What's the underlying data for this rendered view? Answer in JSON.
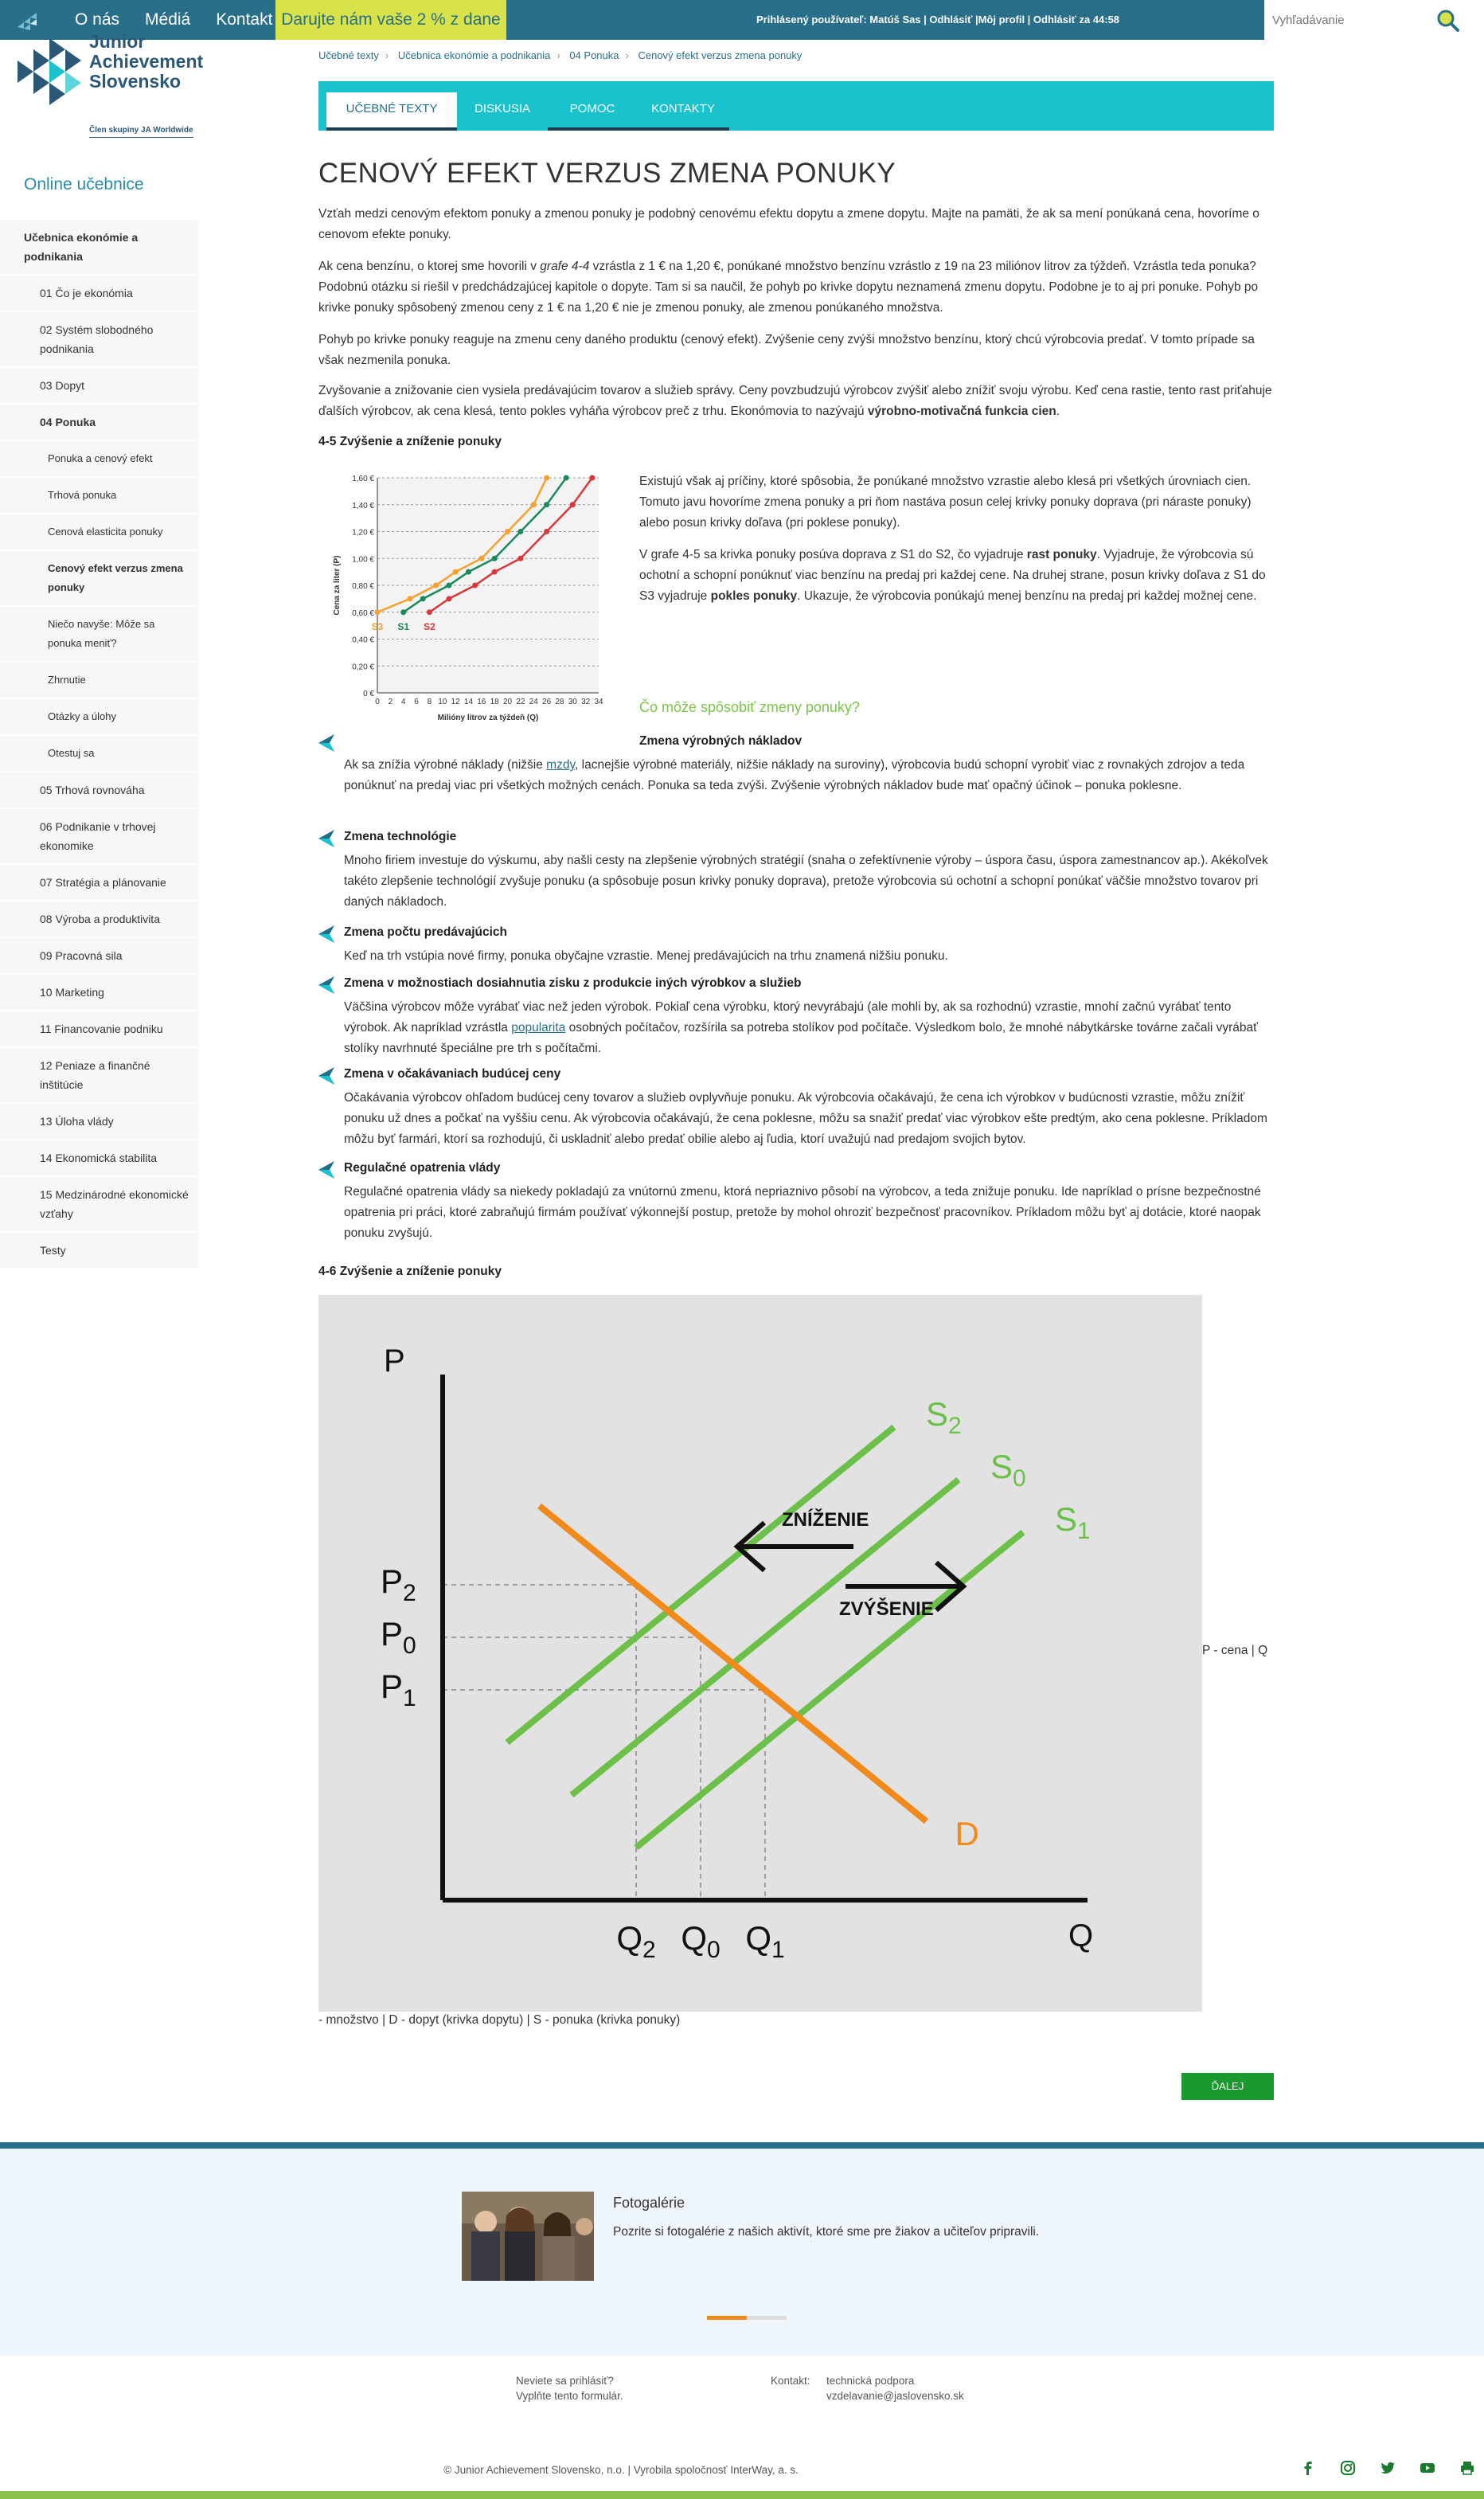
{
  "topbar": {
    "nav": [
      "O nás",
      "Médiá",
      "Kontakt"
    ],
    "donate": "Darujte nám vaše 2 % z dane",
    "user": "Prihlásený používateľ: Matúš Sas | Odhlásiť |Môj profil | Odhlásiť za 44:58",
    "search_placeholder": "Vyhľadávanie",
    "colors": {
      "bar": "#2a6f8a",
      "donate": "#d8e34a"
    }
  },
  "brand": {
    "line1": "Junior",
    "line2": "Achievement",
    "line3": "Slovensko",
    "sub": "Člen skupiny JA Worldwide"
  },
  "sidebar": {
    "title": "Online učebnice",
    "items": [
      {
        "label": "Učebnica ekonómie a podnikania",
        "level": 0
      },
      {
        "label": "01 Čo je ekonómia",
        "level": 1
      },
      {
        "label": "02 Systém slobodného podnikania",
        "level": 1
      },
      {
        "label": "03 Dopyt",
        "level": 1
      },
      {
        "label": "04 Ponuka",
        "level": 1,
        "active": true
      },
      {
        "label": "Ponuka a cenový efekt",
        "level": 2
      },
      {
        "label": "Trhová ponuka",
        "level": 2
      },
      {
        "label": "Cenová elasticita ponuky",
        "level": 2
      },
      {
        "label": "Cenový efekt verzus zmena ponuky",
        "level": 2,
        "active": true
      },
      {
        "label": "Niečo navyše: Môže sa ponuka meniť?",
        "level": 2
      },
      {
        "label": "Zhrnutie",
        "level": 2
      },
      {
        "label": "Otázky a úlohy",
        "level": 2
      },
      {
        "label": "Otestuj sa",
        "level": 2
      },
      {
        "label": "05 Trhová rovnováha",
        "level": 1
      },
      {
        "label": "06 Podnikanie v trhovej ekonomike",
        "level": 1
      },
      {
        "label": "07 Stratégia a plánovanie",
        "level": 1
      },
      {
        "label": "08 Výroba a produktivita",
        "level": 1
      },
      {
        "label": "09 Pracovná sila",
        "level": 1
      },
      {
        "label": "10 Marketing",
        "level": 1
      },
      {
        "label": "11 Financovanie podniku",
        "level": 1
      },
      {
        "label": "12 Peniaze a finančné inštitúcie",
        "level": 1
      },
      {
        "label": "13 Úloha vlády",
        "level": 1
      },
      {
        "label": "14 Ekonomická stabilita",
        "level": 1
      },
      {
        "label": "15 Medzinárodné ekonomické vzťahy",
        "level": 1
      },
      {
        "label": "Testy",
        "level": 1
      }
    ]
  },
  "breadcrumb": [
    "Učebné texty",
    "Učebnica ekonómie a podnikania",
    "04 Ponuka",
    "Cenový efekt verzus zmena ponuky"
  ],
  "tabs": [
    "UČEBNÉ TEXTY",
    "DISKUSIA",
    "POMOC",
    "KONTAKTY"
  ],
  "content": {
    "title": "CENOVÝ EFEKT VERZUS ZMENA PONUKY",
    "p1": "Vzťah medzi cenovým efektom ponuky a zmenou ponuky je podobný cenovému efektu dopytu a zmene dopytu. Majte na pamäti, že ak sa mení ponúkaná cena, hovoríme o cenovom efekte ponuky.",
    "p2a": "Ak cena benzínu, o ktorej sme hovorili v ",
    "p2em": "grafe 4-4",
    "p2b": " vzrástla z 1 € na 1,20 €, ponúkané množstvo benzínu vzrástlo z 19 na 23 miliónov litrov za týždeň. Vzrástla teda ponuka? Podobnú otázku si riešil v predchádzajúcej kapitole o dopyte. Tam si sa naučil, že pohyb po krivke dopytu neznamená zmenu dopytu. Podobne je to aj pri ponuke. Pohyb po krivke ponuky spôsobený zmenou ceny z 1 € na 1,20 € nie je zmenou ponuky, ale zmenou ponúkaného množstva.",
    "p3": "Pohyb po krivke ponuky reaguje na zmenu ceny daného produktu (cenový efekt). Zvýšenie ceny zvýši množstvo benzínu, ktorý chcú výrobcovia predať. V tomto prípade sa však nezmenila ponuka.",
    "p4a": "Zvyšovanie a znižovanie cien vysiela predávajúcim tovarov a služieb správy. Ceny povzbudzujú výrobcov zvýšiť alebo znížiť svoju výrobu. Keď cena rastie, tento rast priťahuje ďalších výrobcov, ak cena klesá, tento pokles vyháňa výrobcov preč z trhu. Ekonómovia to nazývajú ",
    "p4b": "výrobno-motivačná funkcia cien",
    "p4c": ".",
    "fig1_title": "4-5 Zvýšenie a zníženie ponuky",
    "s1": "Existujú však aj príčiny, ktoré spôsobia, že ponúkané množstvo vzrastie alebo klesá pri všetkých úrovniach cien. Tomuto javu hovoríme zmena ponuky a pri ňom nastáva posun celej krivky ponuky doprava (pri náraste ponuky) alebo posun krivky doľava (pri poklese ponuky).",
    "s2a": "V grafe 4-5 sa krivka ponuky posúva doprava z S1 do S2, čo vyjadruje ",
    "s2b": "rast ponuky",
    "s2c": ". Vyjadruje, že výrobcovia sú ochotní a schopní ponúknuť viac benzínu na predaj pri každej cene. Na druhej strane, posun krivky doľava z S1 do S3 vyjadruje ",
    "s2d": "pokles ponuky",
    "s2e": ". Ukazuje, že výrobcovia ponúkajú menej benzínu na predaj pri každej možnej cene.",
    "question": "Čo môže spôsobiť zmeny ponuky?",
    "reasons": [
      {
        "title": "Zmena výrobných nákladov",
        "a": "Ak sa znížia výrobné náklady (nižšie ",
        "link": "mzdy",
        "b": ", lacnejšie výrobné materiály, nižšie náklady na suroviny), výrobcovia budú schopní vyrobiť viac z rovnakých zdrojov a teda ponúknuť na predaj viac pri všetkých možných cenách. Ponuka sa teda zvýši. Zvýšenie výrobných nákladov bude mať opačný účinok – ponuka poklesne."
      },
      {
        "title": "Zmena technológie",
        "a": "Mnoho firiem investuje do výskumu, aby našli cesty na zlepšenie výrobných stratégií (snaha o zefektívnenie výroby – úspora času, úspora zamestnancov ap.). Akékoľvek takéto zlepšenie technológií zvyšuje ponuku (a spôsobuje posun krivky ponuky doprava), pretože výrobcovia sú ochotní a schopní ponúkať väčšie množstvo tovarov pri daných nákladoch.",
        "link": "",
        "b": ""
      },
      {
        "title": "Zmena počtu predávajúcich",
        "a": "Keď na trh vstúpia nové firmy, ponuka obyčajne vzrastie. Menej predávajúcich na trhu znamená nižšiu ponuku.",
        "link": "",
        "b": ""
      },
      {
        "title": "Zmena v možnostiach dosiahnutia zisku z produkcie iných výrobkov a služieb",
        "a": "Väčšina výrobcov môže vyrábať viac než jeden výrobok. Pokiaľ cena výrobku, ktorý nevyrábajú (ale mohli by, ak sa rozhodnú) vzrastie, mnohí začnú vyrábať tento výrobok. Ak napríklad vzrástla ",
        "link": "popularita",
        "b": " osobných počítačov, rozšírila sa potreba stolíkov pod počítače. Výsledkom bolo, že mnohé nábytkárske továrne začali vyrábať stolíky navrhnuté špeciálne pre trh s počítačmi."
      },
      {
        "title": "Zmena v očakávaniach budúcej ceny",
        "a": "Očakávania výrobcov ohľadom budúcej ceny tovarov a služieb ovplyvňuje ponuku. Ak výrobcovia očakávajú, že cena ich výrobkov v budúcnosti vzrastie, môžu znížiť ponuku už dnes a počkať na vyššiu cenu. Ak výrobcovia očakávajú, že cena poklesne, môžu sa snažiť predať viac výrobkov ešte predtým, ako cena poklesne. Príkladom môžu byť farmári, ktorí sa rozhodujú, či uskladniť alebo predať obilie alebo aj ľudia, ktorí uvažujú nad predajom svojich bytov.",
        "link": "",
        "b": ""
      },
      {
        "title": "Regulačné opatrenia vlády",
        "a": "Regulačné opatrenia vlády sa niekedy pokladajú za vnútornú zmenu, ktorá nepriaznivo pôsobí na výrobcov, a teda znižuje ponuku. Ide napríklad o prísne bezpečnostné opatrenia pri práci, ktoré zabraňujú firmám používať výkonnejší postup, pretože by mohol ohroziť bezpečnosť pracovníkov. Príkladom môžu byť aj dotácie, ktoré naopak ponuku zvyšujú.",
        "link": "",
        "b": ""
      }
    ],
    "fig2_title": "4-6 Zvýšenie a zníženie ponuky",
    "fig2_alt_a": "P - cena | Q",
    "fig2_alt_b": "- množstvo | D - dopyt (krivka dopytu) | S - ponuka (krivka ponuky)",
    "next": "ĎALEJ"
  },
  "chart_data": [
    {
      "type": "line",
      "xlabel": "Milióny litrov za týždeň (Q)",
      "ylabel": "Cena za liter (P)",
      "x_ticks": [
        "0",
        "2",
        "4",
        "6",
        "8",
        "10",
        "12",
        "14",
        "16",
        "18",
        "20",
        "22",
        "24",
        "26",
        "28",
        "30",
        "32",
        "34"
      ],
      "y_ticks": [
        "0 €",
        "0,20 €",
        "0,40 €",
        "0,60 €",
        "0,80 €",
        "1,00 €",
        "1,20 €",
        "1,40 €",
        "1,60 €"
      ],
      "xlim": [
        0,
        34
      ],
      "ylim": [
        0,
        1.6
      ],
      "grid": true,
      "series": [
        {
          "name": "S3",
          "color": "#f5a030",
          "x": [
            0,
            5,
            9,
            12,
            16,
            20,
            24,
            26
          ],
          "y": [
            0.6,
            0.7,
            0.8,
            0.9,
            1.0,
            1.2,
            1.4,
            1.6
          ]
        },
        {
          "name": "S1",
          "color": "#1a8a5a",
          "x": [
            4,
            7,
            11,
            14,
            18,
            22,
            26,
            29
          ],
          "y": [
            0.6,
            0.7,
            0.8,
            0.9,
            1.0,
            1.2,
            1.4,
            1.6
          ]
        },
        {
          "name": "S2",
          "color": "#d9383a",
          "x": [
            8,
            11,
            15,
            18,
            22,
            26,
            30,
            33
          ],
          "y": [
            0.6,
            0.7,
            0.8,
            0.9,
            1.0,
            1.2,
            1.4,
            1.6
          ]
        }
      ]
    },
    {
      "type": "line",
      "xlabel": "Q",
      "ylabel": "P",
      "x_ticks": [
        "Q2",
        "Q0",
        "Q1"
      ],
      "y_ticks": [
        "P2",
        "P0",
        "P1"
      ],
      "x_tick_values": [
        3,
        4,
        5
      ],
      "y_tick_values": [
        6,
        5,
        4
      ],
      "xlim": [
        0,
        10
      ],
      "ylim": [
        0,
        10
      ],
      "series": [
        {
          "name": "S2",
          "color": "#6cc04a",
          "x": [
            1,
            7
          ],
          "y": [
            3,
            9
          ]
        },
        {
          "name": "S0",
          "color": "#6cc04a",
          "x": [
            2,
            8
          ],
          "y": [
            2,
            8
          ]
        },
        {
          "name": "S1",
          "color": "#6cc04a",
          "x": [
            3,
            9
          ],
          "y": [
            1,
            7
          ]
        },
        {
          "name": "D",
          "color": "#f08a1c",
          "x": [
            1.5,
            7.5
          ],
          "y": [
            7.5,
            1.5
          ]
        }
      ],
      "annotations": [
        "ZNÍŽENIE",
        "ZVÝŠENIE"
      ]
    }
  ],
  "gallery": {
    "title": "Fotogalérie",
    "text": "Pozrite si fotogalérie z našich aktivít, ktoré sme pre žiakov a učiteľov pripravili."
  },
  "footer": {
    "login_q": "Neviete sa prihlásiť?",
    "login_a": "Vyplňte tento formulár.",
    "contact_label": "Kontakt:",
    "contact_1": "technická podpora",
    "contact_2": "vzdelavanie@jaslovensko.sk",
    "copyright": "© Junior Achievement Slovensko, n.o. | Vyrobila spoločnosť InterWay, a. s."
  }
}
